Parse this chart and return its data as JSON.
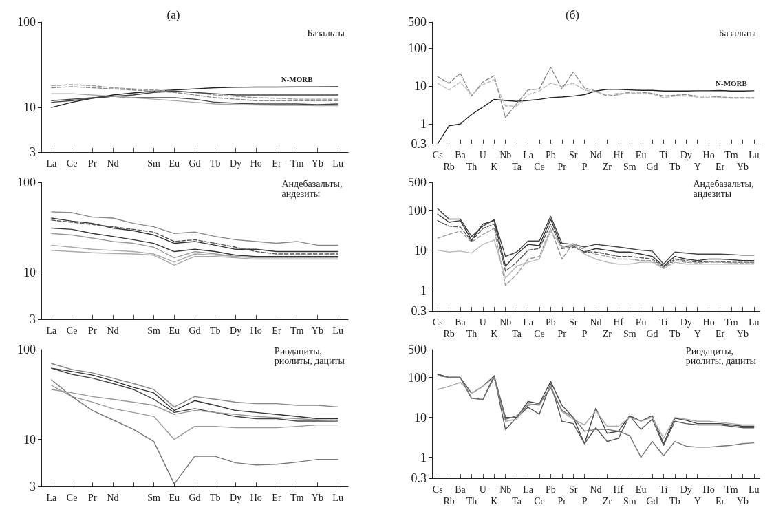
{
  "chart_data": [
    {
      "type": "line",
      "title": "(а)",
      "subtitle": "Базальты",
      "categories": [
        "La",
        "Ce",
        "Pr",
        "Nd",
        null,
        "Sm",
        "Eu",
        "Gd",
        "Tb",
        "Dy",
        "Ho",
        "Er",
        "Tm",
        "Yb",
        "Lu"
      ],
      "log": true,
      "ylim": [
        3,
        100
      ],
      "yticks": [
        3,
        10,
        100
      ],
      "legend": false,
      "series": [
        {
          "name": "N-MORB",
          "color": "#222222",
          "values": [
            10,
            11.5,
            12.8,
            14,
            14.8,
            15.5,
            16,
            16.5,
            17,
            17.2,
            17.3,
            17.3,
            17.4,
            17.4,
            17.5
          ]
        },
        {
          "color": "#999999",
          "line_style": "dashed",
          "values": [
            18,
            18.5,
            18,
            17,
            16.5,
            16,
            15.5,
            15,
            14,
            13.5,
            13,
            12.8,
            12.5,
            12.5,
            12.5
          ]
        },
        {
          "color": "#444444",
          "values": [
            11.5,
            12,
            12.8,
            13.5,
            13,
            13,
            13,
            12.5,
            11.5,
            11.2,
            11,
            11,
            11,
            10.8,
            11
          ]
        },
        {
          "color": "#444444",
          "values": [
            12,
            12.5,
            13,
            13.5,
            14,
            15,
            15.5,
            15,
            14.5,
            14,
            14,
            14,
            14,
            14,
            14
          ]
        },
        {
          "color": "#aaaaaa",
          "values": [
            14.5,
            14.5,
            14,
            13.5,
            13,
            12.5,
            12,
            11.5,
            11,
            10.8,
            10.7,
            10.6,
            10.6,
            10.5,
            10.5
          ]
        },
        {
          "color": "#888888",
          "line_style": "dashed",
          "values": [
            17,
            17.5,
            17,
            16.5,
            16,
            15.5,
            15,
            14,
            13,
            12.5,
            12,
            12,
            12,
            12,
            12
          ]
        }
      ]
    },
    {
      "type": "line",
      "subtitle": "Андебазальты, андезиты",
      "categories": [
        "La",
        "Ce",
        "Pr",
        "Nd",
        null,
        "Sm",
        "Eu",
        "Gd",
        "Tb",
        "Dy",
        "Ho",
        "Er",
        "Tm",
        "Yb",
        "Lu"
      ],
      "log": true,
      "ylim": [
        3,
        100
      ],
      "yticks": [
        3,
        10,
        100
      ],
      "legend": false,
      "series": [
        {
          "color": "#888888",
          "values": [
            47,
            46,
            41,
            40,
            35,
            32,
            27,
            28,
            25,
            23,
            22,
            21,
            22,
            20,
            20
          ]
        },
        {
          "color": "#333333",
          "values": [
            40,
            37,
            35,
            31,
            29,
            26,
            21,
            22,
            20,
            18,
            18,
            17,
            17,
            17,
            17
          ]
        },
        {
          "color": "#555555",
          "line_style": "dashed",
          "values": [
            38,
            36,
            34,
            32,
            30,
            28,
            22,
            23,
            21,
            19,
            17,
            16,
            16,
            16,
            16
          ]
        },
        {
          "color": "#333333",
          "values": [
            31,
            30,
            27,
            25,
            23,
            21,
            17,
            18,
            17,
            15.5,
            15,
            15,
            15,
            15,
            15
          ]
        },
        {
          "color": "#999999",
          "values": [
            27,
            26,
            24,
            22,
            21,
            19,
            14.5,
            17,
            16,
            15,
            14.5,
            14.5,
            14.5,
            14.5,
            14.5
          ]
        },
        {
          "color": "#aaaaaa",
          "values": [
            20,
            19,
            18,
            17.5,
            17,
            16,
            13,
            16,
            15.5,
            15,
            14.5,
            14.5,
            14.5,
            14.5,
            14.5
          ]
        },
        {
          "color": "#aaaaaa",
          "values": [
            17.5,
            17,
            16.5,
            16.2,
            16,
            15.5,
            12,
            15,
            15,
            14.5,
            14,
            14,
            14,
            14,
            14
          ]
        }
      ]
    },
    {
      "type": "line",
      "subtitle": "Риодациты, риолиты, дациты",
      "categories": [
        "La",
        "Ce",
        "Pr",
        "Nd",
        null,
        "Sm",
        "Eu",
        "Gd",
        "Tb",
        "Dy",
        "Ho",
        "Er",
        "Tm",
        "Yb",
        "Lu"
      ],
      "log": true,
      "ylim": [
        3,
        100
      ],
      "yticks": [
        3,
        10,
        100
      ],
      "legend": false,
      "series": [
        {
          "color": "#888888",
          "values": [
            70,
            60,
            55,
            48,
            42,
            36,
            23,
            30,
            28,
            26,
            25,
            25,
            24,
            24,
            23
          ]
        },
        {
          "color": "#333333",
          "values": [
            62,
            57,
            52,
            45,
            38,
            33,
            21,
            27,
            24,
            21,
            20,
            19,
            18,
            17,
            17
          ]
        },
        {
          "color": "#444444",
          "values": [
            62,
            53,
            48,
            42,
            36,
            28,
            20,
            22,
            20,
            18,
            17,
            17,
            16,
            16,
            16
          ]
        },
        {
          "color": "#999999",
          "values": [
            36,
            33,
            30,
            28,
            26,
            24,
            19,
            21,
            20,
            19,
            18,
            17.5,
            17,
            16.5,
            16
          ]
        },
        {
          "color": "#999999",
          "values": [
            40,
            30,
            26,
            22,
            20,
            18,
            10,
            14,
            14,
            13.5,
            13.5,
            13.5,
            14,
            14.5,
            14.5
          ]
        },
        {
          "color": "#777777",
          "values": [
            46,
            30,
            21,
            16.5,
            13,
            9.5,
            3.2,
            6.5,
            6.5,
            5.5,
            5.2,
            5.3,
            5.6,
            6,
            6
          ]
        }
      ]
    },
    {
      "type": "line",
      "title": "(б)",
      "subtitle": "Базальты",
      "categories": [
        "Cs",
        "Rb",
        "Ba",
        "Th",
        "U",
        "K",
        "Nb",
        "Ta",
        "La",
        "Ce",
        "Pb",
        "Pr",
        "Sr",
        "P",
        "Nd",
        "Zr",
        "Hf",
        "Sm",
        "Eu",
        "Gd",
        "Ti",
        "Tb",
        "Dy",
        "Y",
        "Ho",
        "Er",
        "Tm",
        "Yb",
        "Lu"
      ],
      "log": true,
      "ylim": [
        0.3,
        500
      ],
      "yticks": [
        0.3,
        1,
        10,
        100,
        500
      ],
      "legend": false,
      "series": [
        {
          "name": "N-MORB",
          "color": "#222222",
          "values": [
            0.3,
            0.9,
            1,
            1.8,
            2.8,
            4.5,
            4.2,
            4,
            4.2,
            4.5,
            5,
            5.2,
            5.5,
            6,
            7.5,
            8.3,
            8.3,
            8,
            7.8,
            7.8,
            7.5,
            7.5,
            7.5,
            7.6,
            7.6,
            7.7,
            7.5,
            7.5,
            7.6
          ]
        },
        {
          "color": "#888888",
          "line_style": "dashed",
          "values": [
            18,
            12,
            22,
            5.5,
            13,
            19,
            1.5,
            3.5,
            8,
            8.5,
            32,
            8.5,
            24,
            9,
            7.5,
            5.5,
            6,
            7,
            7,
            6.5,
            5.5,
            5.8,
            6,
            5.5,
            5.5,
            5.2,
            5,
            5,
            5
          ]
        },
        {
          "color": "#bbbbbb",
          "line_style": "dashed",
          "values": [
            12,
            8,
            13,
            6,
            11,
            15,
            3,
            3,
            6,
            7.5,
            12,
            10,
            12,
            8,
            7,
            6,
            6.5,
            6.5,
            6.5,
            6.2,
            5,
            5.5,
            5.5,
            5.2,
            5,
            5,
            4.8,
            4.8,
            4.8
          ]
        }
      ]
    },
    {
      "type": "line",
      "subtitle": "Андебазальты, андезиты",
      "categories": [
        "Cs",
        "Rb",
        "Ba",
        "Th",
        "U",
        "K",
        "Nb",
        "Ta",
        "La",
        "Ce",
        "Pb",
        "Pr",
        "Sr",
        "P",
        "Nd",
        "Zr",
        "Hf",
        "Sm",
        "Eu",
        "Gd",
        "Ti",
        "Tb",
        "Dy",
        "Y",
        "Ho",
        "Er",
        "Tm",
        "Yb",
        "Lu"
      ],
      "log": true,
      "ylim": [
        0.3,
        500
      ],
      "yticks": [
        0.3,
        1,
        10,
        100,
        500
      ],
      "legend": false,
      "series": [
        {
          "color": "#444444",
          "values": [
            110,
            60,
            60,
            22,
            40,
            58,
            7,
            9,
            17,
            17,
            70,
            15,
            14,
            12,
            14,
            13,
            12,
            11,
            10,
            9.5,
            4.5,
            9,
            8.5,
            8,
            8,
            8,
            7.8,
            7.5,
            7.5
          ]
        },
        {
          "color": "#333333",
          "values": [
            80,
            50,
            55,
            18,
            45,
            55,
            4,
            8,
            14,
            13,
            60,
            12,
            13,
            9,
            11,
            10,
            9,
            9,
            8,
            7,
            4,
            7,
            6,
            5.5,
            6,
            6,
            5.8,
            5.5,
            5.5
          ]
        },
        {
          "color": "#555555",
          "line_style": "dashed",
          "values": [
            55,
            40,
            38,
            17,
            35,
            45,
            3,
            5,
            10,
            11,
            45,
            11,
            12,
            9,
            9,
            8,
            7,
            7,
            6.5,
            6,
            3.8,
            6,
            5.5,
            5,
            5.2,
            5.2,
            5,
            5,
            5
          ]
        },
        {
          "color": "#999999",
          "line_style": "dashed",
          "values": [
            20,
            25,
            30,
            16,
            25,
            35,
            1.3,
            2.5,
            6,
            7,
            35,
            6,
            15,
            10,
            8,
            7,
            6,
            6,
            5.5,
            5.5,
            3.5,
            5.5,
            5,
            4.8,
            5,
            5,
            4.8,
            4.8,
            4.8
          ]
        },
        {
          "color": "#bbbbbb",
          "values": [
            10,
            9,
            9.5,
            8.5,
            14,
            18,
            2,
            4,
            5,
            6,
            30,
            12,
            14,
            8,
            6,
            5,
            4.5,
            4.5,
            5,
            5,
            3.5,
            5,
            4.5,
            4.5,
            4.5,
            4.5,
            4.5,
            4.5,
            4.5
          ]
        }
      ]
    },
    {
      "type": "line",
      "subtitle": "Риодациты, риолиты, дациты",
      "categories": [
        "Cs",
        "Rb",
        "Ba",
        "Th",
        "U",
        "K",
        "Nb",
        "Ta",
        "La",
        "Ce",
        "Pb",
        "Pr",
        "Sr",
        "P",
        "Nd",
        "Zr",
        "Hf",
        "Sm",
        "Eu",
        "Gd",
        "Ti",
        "Tb",
        "Dy",
        "Y",
        "Ho",
        "Er",
        "Tm",
        "Yb",
        "Lu"
      ],
      "log": true,
      "ylim": [
        0.3,
        500
      ],
      "yticks": [
        0.3,
        1,
        10,
        100,
        500
      ],
      "legend": false,
      "series": [
        {
          "color": "#444444",
          "values": [
            120,
            100,
            100,
            30,
            28,
            110,
            10,
            10,
            25,
            22,
            80,
            20,
            10,
            2.2,
            17,
            4,
            4.5,
            11,
            8,
            11,
            2.2,
            9.5,
            8.5,
            7,
            7,
            7,
            6.5,
            6,
            6
          ]
        },
        {
          "color": "#555555",
          "values": [
            120,
            100,
            100,
            40,
            60,
            110,
            5,
            10,
            18,
            12,
            70,
            8,
            7,
            2.2,
            5.5,
            2.5,
            3,
            11,
            5,
            9,
            2,
            8,
            7,
            6.5,
            6.5,
            6.5,
            6,
            5.5,
            5.5
          ]
        },
        {
          "color": "#aaaaaa",
          "values": [
            50,
            60,
            75,
            40,
            60,
            100,
            8,
            9,
            22,
            20,
            60,
            14,
            9,
            6.5,
            15,
            6,
            6,
            10,
            8,
            10,
            3,
            10,
            9,
            8,
            8,
            7.5,
            7,
            6.5,
            6.5
          ]
        },
        {
          "color": "#777777",
          "values": [
            110,
            100,
            100,
            30,
            28,
            100,
            9,
            11,
            20,
            22,
            55,
            15,
            10,
            4.5,
            5,
            5,
            4.5,
            3.5,
            1,
            2.5,
            1.1,
            2.5,
            1.9,
            1.8,
            1.8,
            1.9,
            2,
            2.2,
            2.3
          ]
        }
      ]
    }
  ]
}
